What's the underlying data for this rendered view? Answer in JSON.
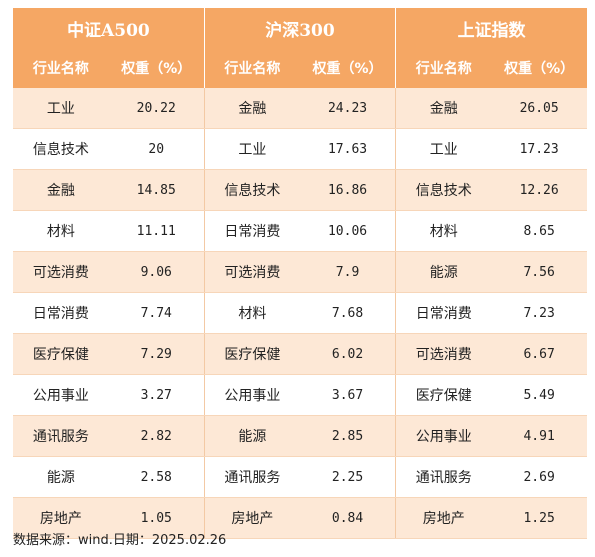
{
  "groups": [
    "中证A500",
    "沪深300",
    "上证指数"
  ],
  "col_industry": "行业名称",
  "col_weight": "权重（%）",
  "rows": [
    [
      [
        "工业",
        "20.22"
      ],
      [
        "金融",
        "24.23"
      ],
      [
        "金融",
        "26.05"
      ]
    ],
    [
      [
        "信息技术",
        "20"
      ],
      [
        "工业",
        "17.63"
      ],
      [
        "工业",
        "17.23"
      ]
    ],
    [
      [
        "金融",
        "14.85"
      ],
      [
        "信息技术",
        "16.86"
      ],
      [
        "信息技术",
        "12.26"
      ]
    ],
    [
      [
        "材料",
        "11.11"
      ],
      [
        "日常消费",
        "10.06"
      ],
      [
        "材料",
        "8.65"
      ]
    ],
    [
      [
        "可选消费",
        "9.06"
      ],
      [
        "可选消费",
        "7.9"
      ],
      [
        "能源",
        "7.56"
      ]
    ],
    [
      [
        "日常消费",
        "7.74"
      ],
      [
        "材料",
        "7.68"
      ],
      [
        "日常消费",
        "7.23"
      ]
    ],
    [
      [
        "医疗保健",
        "7.29"
      ],
      [
        "医疗保健",
        "6.02"
      ],
      [
        "可选消费",
        "6.67"
      ]
    ],
    [
      [
        "公用事业",
        "3.27"
      ],
      [
        "公用事业",
        "3.67"
      ],
      [
        "医疗保健",
        "5.49"
      ]
    ],
    [
      [
        "通讯服务",
        "2.82"
      ],
      [
        "能源",
        "2.85"
      ],
      [
        "公用事业",
        "4.91"
      ]
    ],
    [
      [
        "能源",
        "2.58"
      ],
      [
        "通讯服务",
        "2.25"
      ],
      [
        "通讯服务",
        "2.69"
      ]
    ],
    [
      [
        "房地产",
        "1.05"
      ],
      [
        "房地产",
        "0.84"
      ],
      [
        "房地产",
        "1.25"
      ]
    ]
  ],
  "source": "数据来源：wind.日期：2025.02.26",
  "colors": {
    "header": "#f5a764",
    "stripe": "#fde8d6"
  }
}
